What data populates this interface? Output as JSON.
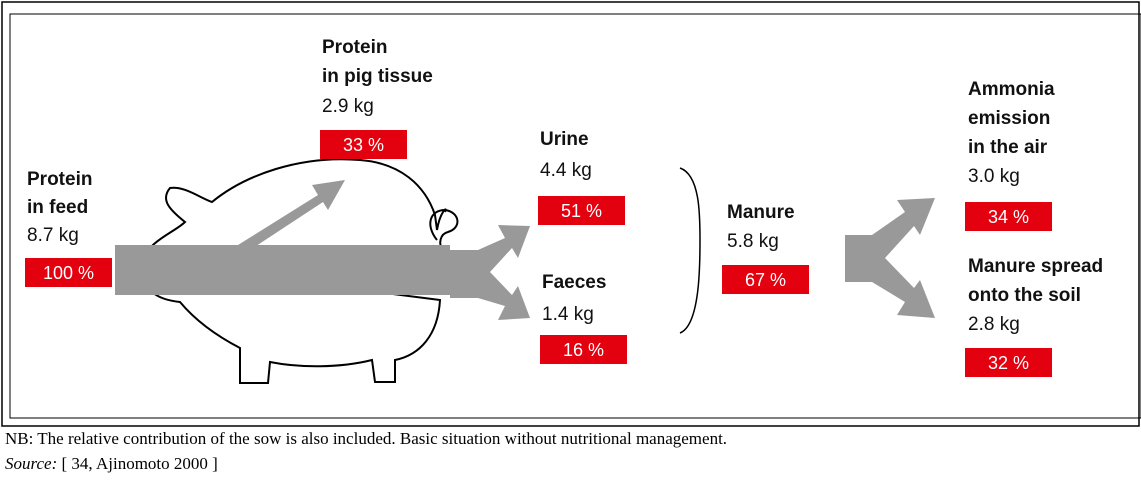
{
  "nodes": [
    {
      "label": [
        "Protein",
        "in feed"
      ],
      "amount": "8.7 kg",
      "percent": "100 %"
    },
    {
      "label": [
        "Protein",
        "in pig tissue"
      ],
      "amount": "2.9 kg",
      "percent": "33 %"
    },
    {
      "label": [
        "Urine"
      ],
      "amount": "4.4 kg",
      "percent": "51 %"
    },
    {
      "label": [
        "Faeces"
      ],
      "amount": "1.4 kg",
      "percent": "16 %"
    },
    {
      "label": [
        "Manure"
      ],
      "amount": "5.8 kg",
      "percent": "67 %"
    },
    {
      "label": [
        "Ammonia",
        "emission",
        "in the air"
      ],
      "amount": "3.0 kg",
      "percent": "34 %"
    },
    {
      "label": [
        "Manure spread",
        "onto the soil"
      ],
      "amount": "2.8 kg",
      "percent": "32 %"
    }
  ],
  "note": {
    "text": "NB: The relative contribution of the sow is also included. Basic situation without nutritional management.",
    "source_label": "Source:",
    "source": " [ 34, Ajinomoto 2000 ]"
  }
}
